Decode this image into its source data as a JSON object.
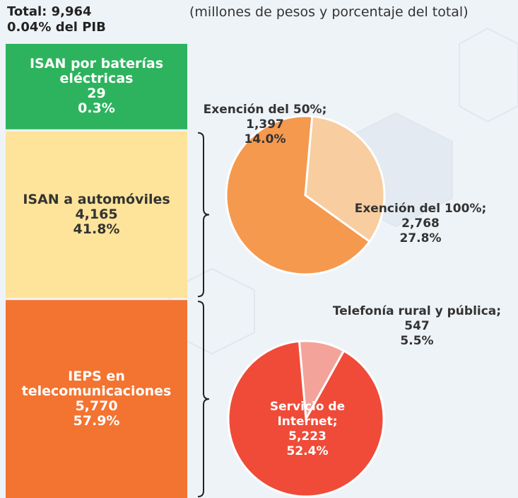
{
  "chart_data": [
    {
      "type": "stacked_column",
      "title": "Total: 9,964",
      "subtitle": "0.04% del PIB",
      "note": "(millones de pesos y porcentaje del total)",
      "categories": [
        "ISAN por baterías eléctricas",
        "ISAN a automóviles",
        "IEPS en telecomunicaciones"
      ],
      "values": [
        29,
        4165,
        5770
      ],
      "value_labels": [
        "29",
        "4,165",
        "5,770"
      ],
      "shares": [
        0.3,
        41.8,
        57.9
      ],
      "share_labels": [
        "0.3%",
        "41.8%",
        "57.9%"
      ],
      "colors": [
        "#2db35d",
        "#fde49a",
        "#f37330"
      ]
    },
    {
      "type": "pie",
      "categories": [
        "Exención del 50%;",
        "Exención del 100%;"
      ],
      "values": [
        1397,
        2768
      ],
      "value_labels": [
        "1,397",
        "2,768"
      ],
      "shares": [
        14.0,
        27.8
      ],
      "share_labels": [
        "14.0%",
        "27.8%"
      ],
      "colors": [
        "#f8cda0",
        "#f5994e"
      ]
    },
    {
      "type": "pie",
      "categories": [
        "Telefonía rural y pública;",
        "Servicio de Internet;"
      ],
      "values": [
        547,
        5223
      ],
      "value_labels": [
        "547",
        "5,223"
      ],
      "shares": [
        5.5,
        52.4
      ],
      "share_labels": [
        "5.5%",
        "52.4%"
      ],
      "colors": [
        "#f4a39a",
        "#ef4b38"
      ]
    }
  ]
}
